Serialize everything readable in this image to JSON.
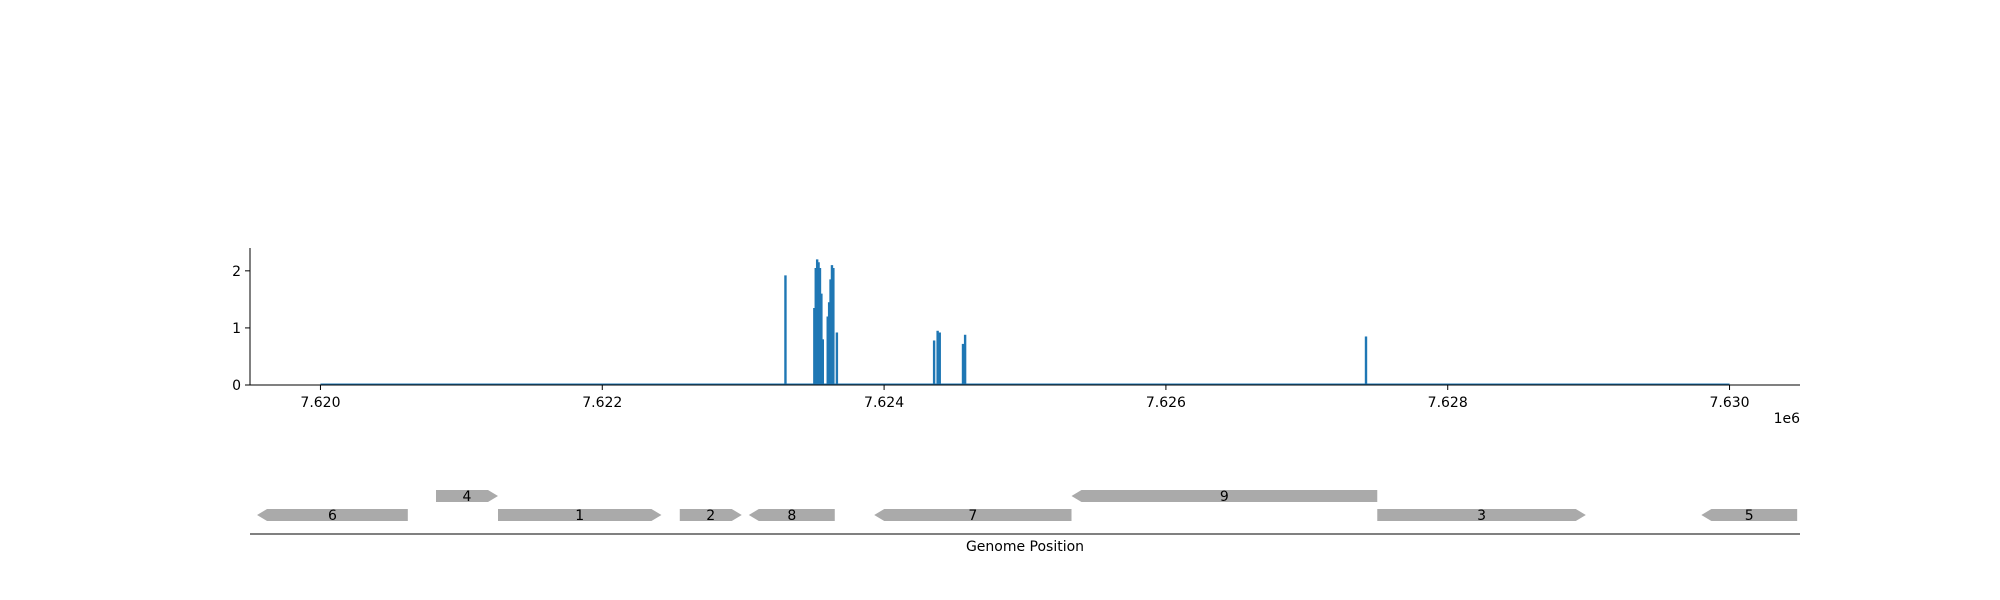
{
  "chart_data": [
    {
      "type": "line",
      "title": "",
      "xlabel": "",
      "ylabel": "",
      "x_offset_label": "1e6",
      "xlim": [
        7619500,
        7630500
      ],
      "ylim": [
        0,
        2.4
      ],
      "xticks": [
        7620000,
        7622000,
        7624000,
        7626000,
        7628000,
        7630000
      ],
      "xtick_labels": [
        "7.620",
        "7.622",
        "7.624",
        "7.626",
        "7.628",
        "7.630"
      ],
      "yticks": [
        0,
        1,
        2
      ],
      "ytick_labels": [
        "0",
        "1",
        "2"
      ],
      "grid": false,
      "color": "#1f77b4",
      "baseline": [
        7620000,
        7630000
      ],
      "peaks": [
        {
          "x": 7623300,
          "y": 1.92
        },
        {
          "x": 7623505,
          "y": 1.35
        },
        {
          "x": 7623515,
          "y": 2.05
        },
        {
          "x": 7623525,
          "y": 2.2
        },
        {
          "x": 7623535,
          "y": 2.15
        },
        {
          "x": 7623545,
          "y": 2.05
        },
        {
          "x": 7623555,
          "y": 1.6
        },
        {
          "x": 7623565,
          "y": 0.8
        },
        {
          "x": 7623600,
          "y": 1.2
        },
        {
          "x": 7623610,
          "y": 1.45
        },
        {
          "x": 7623620,
          "y": 1.85
        },
        {
          "x": 7623630,
          "y": 2.1
        },
        {
          "x": 7623640,
          "y": 2.05
        },
        {
          "x": 7623665,
          "y": 0.92
        },
        {
          "x": 7624355,
          "y": 0.78
        },
        {
          "x": 7624380,
          "y": 0.95
        },
        {
          "x": 7624395,
          "y": 0.92
        },
        {
          "x": 7624560,
          "y": 0.72
        },
        {
          "x": 7624575,
          "y": 0.88
        },
        {
          "x": 7627420,
          "y": 0.85
        }
      ]
    },
    {
      "type": "gene_track",
      "xlabel": "Genome Position",
      "xlim": [
        7619500,
        7630500
      ],
      "genes": [
        {
          "label": "6",
          "start": 7619550,
          "end": 7620620,
          "strand": "-",
          "row": 0
        },
        {
          "label": "4",
          "start": 7620820,
          "end": 7621260,
          "strand": "+",
          "row": 1
        },
        {
          "label": "1",
          "start": 7621260,
          "end": 7622420,
          "strand": "+",
          "row": 0
        },
        {
          "label": "2",
          "start": 7622550,
          "end": 7622990,
          "strand": "+",
          "row": 0
        },
        {
          "label": "8",
          "start": 7623040,
          "end": 7623650,
          "strand": "-",
          "row": 0
        },
        {
          "label": "7",
          "start": 7623930,
          "end": 7625330,
          "strand": "-",
          "row": 0
        },
        {
          "label": "9",
          "start": 7625330,
          "end": 7627500,
          "strand": "-",
          "row": 1
        },
        {
          "label": "3",
          "start": 7627500,
          "end": 7628980,
          "strand": "+",
          "row": 0
        },
        {
          "label": "5",
          "start": 7629800,
          "end": 7630480,
          "strand": "-",
          "row": 0
        }
      ],
      "color": "#aaaaaa"
    }
  ]
}
